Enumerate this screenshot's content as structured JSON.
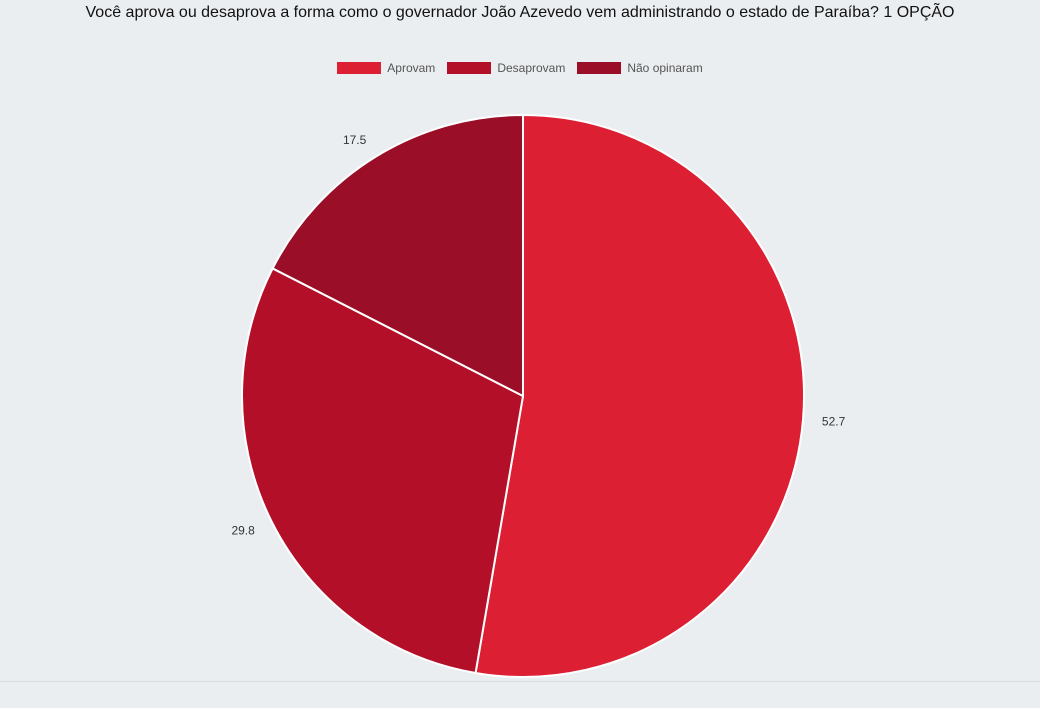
{
  "chart_data": {
    "type": "pie",
    "title": "Você aprova ou desaprova a forma como o governador João Azevedo vem administrando o estado de Paraíba? 1 OPÇÃO",
    "legend_position": "top-center",
    "slices": [
      {
        "name": "Aprovam",
        "value": 52.7,
        "label": "52.7",
        "color": "#dc1f33"
      },
      {
        "name": "Desaprovam",
        "value": 29.8,
        "label": "29.8",
        "color": "#b30f28"
      },
      {
        "name": "Não opinaram",
        "value": 17.5,
        "label": "17.5",
        "color": "#9a0e28"
      }
    ]
  }
}
